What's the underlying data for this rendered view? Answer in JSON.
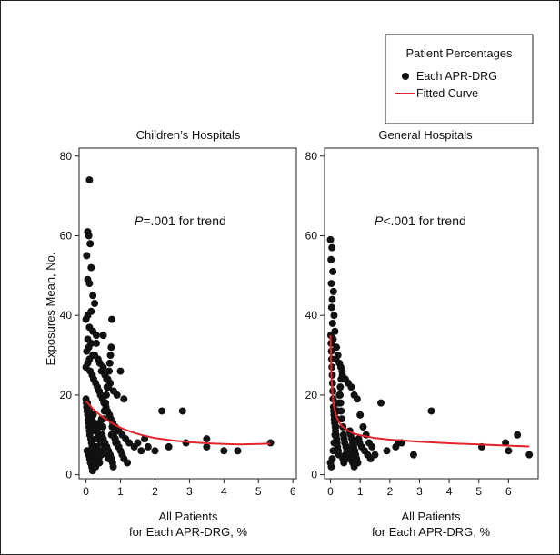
{
  "legend": {
    "title": "Patient Percentages",
    "items": [
      {
        "label": "Each APR-DRG",
        "kind": "point",
        "color": "#111111"
      },
      {
        "label": "Fitted Curve",
        "kind": "line",
        "color": "#e3222a"
      }
    ]
  },
  "ylabel": "Exposures Mean, No.",
  "chart_data": [
    {
      "type": "scatter",
      "title": "Children’s Hospitals",
      "annotation": {
        "p": "P",
        "rest": "=.001 for trend"
      },
      "xlabel": [
        "All Patients",
        "for Each APR-DRG, %"
      ],
      "xlim": [
        -0.2,
        6.1
      ],
      "ylim": [
        -1,
        82
      ],
      "xticks": [
        0,
        1,
        2,
        3,
        4,
        5,
        6
      ],
      "yticks": [
        0,
        20,
        40,
        60,
        80
      ],
      "series": [
        {
          "kind": "points",
          "color": "#111111",
          "x": [
            0.1,
            0.05,
            0.08,
            0.12,
            0.02,
            0.15,
            0.05,
            0.1,
            0.2,
            0.25,
            0.15,
            0.05,
            0.0,
            0.1,
            0.2,
            0.3,
            0.05,
            0.15,
            0.08,
            0.02,
            0.25,
            0.35,
            0.4,
            0.5,
            0.45,
            0.55,
            0.6,
            0.7,
            0.65,
            0.8,
            0.9,
            1.0,
            1.1,
            0.75,
            0.5,
            0.3,
            0.2,
            0.1,
            0.05,
            0.0,
            0.12,
            0.18,
            0.22,
            0.28,
            0.33,
            0.38,
            0.42,
            0.48,
            0.52,
            0.58,
            0.62,
            0.68,
            0.72,
            0.78,
            0.85,
            0.95,
            1.05,
            1.15,
            1.25,
            1.4,
            1.5,
            1.6,
            1.7,
            1.8,
            2.0,
            2.2,
            2.4,
            2.8,
            2.9,
            3.5,
            3.5,
            4.0,
            4.4,
            5.35,
            0.04,
            0.06,
            0.09,
            0.14,
            0.16,
            0.24,
            0.26,
            0.32,
            0.36,
            0.44,
            0.46,
            0.54,
            0.56,
            0.64,
            0.66,
            0.74,
            0.76,
            0.84,
            0.86,
            0.94,
            0.03,
            0.07,
            0.11,
            0.13,
            0.17,
            0.19,
            0.21,
            0.23,
            0.27,
            0.29,
            0.31,
            0.34,
            0.37,
            0.39,
            0.41,
            0.43,
            0.47,
            0.49,
            0.51,
            0.53,
            0.57,
            0.59,
            0.61,
            0.63,
            0.67,
            0.69,
            0.71,
            0.73,
            0.77,
            0.79,
            0.0,
            0.01,
            0.02,
            0.03,
            0.05,
            0.06,
            0.08,
            0.09,
            0.1,
            0.11,
            0.14,
            0.16,
            0.18,
            0.2,
            0.22,
            0.24,
            0.26,
            0.28,
            0.3,
            0.35,
            0.4,
            0.45,
            0.5,
            0.55,
            0.6,
            0.65,
            0.7,
            0.75,
            0.8,
            0.85,
            0.9,
            0.95,
            1.0,
            1.05,
            1.1,
            1.2,
            0.45,
            0.6
          ],
          "y": [
            74,
            61,
            60,
            58,
            55,
            52,
            49,
            48,
            45,
            43,
            41,
            40,
            39,
            37,
            36,
            35,
            34,
            33,
            32,
            31,
            30,
            29,
            28,
            27,
            26,
            25,
            24,
            23,
            22,
            21,
            20,
            26,
            19,
            39,
            35,
            33,
            30,
            29,
            28,
            27,
            26,
            25,
            24,
            23,
            22,
            21,
            20,
            19,
            18,
            17,
            16,
            15,
            14,
            13,
            12,
            11,
            10,
            9,
            8,
            7,
            8,
            6,
            9,
            7,
            6,
            16,
            7,
            16,
            8,
            7,
            9,
            6,
            6,
            8,
            18,
            17,
            16,
            15,
            14,
            13,
            12,
            11,
            10,
            9,
            8,
            7,
            6,
            5,
            4,
            10,
            12,
            9,
            8,
            7,
            6,
            5,
            4,
            3,
            2,
            1,
            15,
            13,
            11,
            9,
            7,
            5,
            4,
            3,
            6,
            8,
            10,
            12,
            14,
            16,
            18,
            20,
            22,
            24,
            26,
            28,
            30,
            32,
            3,
            2,
            19,
            18,
            17,
            16,
            15,
            14,
            13,
            12,
            11,
            10,
            9,
            8,
            7,
            6,
            5,
            4,
            3,
            2,
            11,
            12,
            13,
            14,
            9,
            8,
            7,
            6,
            5,
            4,
            10,
            9,
            8,
            7,
            6,
            5,
            4,
            3,
            5,
            7
          ]
        },
        {
          "kind": "line",
          "color": "#e3222a",
          "x": [
            0.0,
            0.2,
            0.4,
            0.6,
            0.8,
            1.0,
            1.3,
            1.6,
            2.0,
            2.5,
            3.0,
            3.5,
            4.0,
            4.5,
            5.0,
            5.35
          ],
          "y": [
            18.5,
            16.5,
            15.0,
            13.8,
            12.7,
            11.8,
            10.8,
            10.0,
            9.2,
            8.6,
            8.2,
            7.9,
            7.7,
            7.6,
            7.7,
            7.8
          ]
        }
      ]
    },
    {
      "type": "scatter",
      "title": "General Hospitals",
      "annotation": {
        "p": "P",
        "rest": "<.001 for trend"
      },
      "xlabel": [
        "All Patients",
        "for Each APR-DRG, %"
      ],
      "xlim": [
        -0.2,
        7.0
      ],
      "ylim": [
        -1,
        82
      ],
      "xticks": [
        0,
        1,
        2,
        3,
        4,
        5,
        6
      ],
      "yticks": [
        0,
        20,
        40,
        60,
        80
      ],
      "series": [
        {
          "kind": "points",
          "color": "#111111",
          "x": [
            0.0,
            0.05,
            0.02,
            0.08,
            0.03,
            0.1,
            0.06,
            0.04,
            0.12,
            0.07,
            0.15,
            0.09,
            0.2,
            0.25,
            0.18,
            0.3,
            0.35,
            0.4,
            0.5,
            0.6,
            0.7,
            0.8,
            0.9,
            1.0,
            1.1,
            1.2,
            1.3,
            1.4,
            1.7,
            1.9,
            2.2,
            2.3,
            2.4,
            2.8,
            3.4,
            5.1,
            5.9,
            6.0,
            6.3,
            6.7,
            0.01,
            0.02,
            0.03,
            0.04,
            0.05,
            0.06,
            0.07,
            0.08,
            0.09,
            0.1,
            0.11,
            0.12,
            0.13,
            0.14,
            0.16,
            0.17,
            0.19,
            0.21,
            0.22,
            0.24,
            0.26,
            0.28,
            0.32,
            0.34,
            0.36,
            0.38,
            0.42,
            0.44,
            0.46,
            0.48,
            0.52,
            0.55,
            0.58,
            0.62,
            0.65,
            0.68,
            0.72,
            0.75,
            0.78,
            0.82,
            0.85,
            0.88,
            0.92,
            0.95,
            0.98,
            1.05,
            1.15,
            1.25,
            1.35,
            1.5,
            0.0,
            0.03,
            0.06,
            0.09,
            0.12,
            0.15,
            0.18,
            0.21,
            0.24,
            0.27,
            0.3,
            0.33,
            0.36,
            0.39,
            0.42,
            0.45,
            0.5,
            0.55,
            0.6,
            0.65,
            0.7,
            0.75,
            0.8
          ],
          "y": [
            59,
            57,
            54,
            51,
            48,
            46,
            44,
            42,
            40,
            38,
            36,
            34,
            32,
            30,
            29,
            28,
            27,
            25,
            24,
            23,
            22,
            20,
            19,
            15,
            12,
            10,
            8,
            7,
            18,
            6,
            7,
            8,
            8,
            5,
            16,
            7,
            8,
            6,
            10,
            5,
            35,
            33,
            31,
            29,
            27,
            25,
            23,
            21,
            19,
            17,
            16,
            15,
            14,
            13,
            12,
            11,
            10,
            9,
            8,
            7,
            6,
            5,
            20,
            18,
            16,
            14,
            12,
            10,
            9,
            8,
            7,
            6,
            5,
            4,
            11,
            10,
            9,
            8,
            7,
            6,
            5,
            4,
            3,
            9,
            8,
            7,
            6,
            5,
            4,
            5,
            3,
            2,
            4,
            6,
            8,
            10,
            12,
            14,
            16,
            18,
            20,
            22,
            24,
            26,
            4,
            3,
            5,
            7,
            6,
            5,
            4,
            3,
            2
          ]
        },
        {
          "kind": "line",
          "color": "#e3222a",
          "x": [
            0.0,
            0.03,
            0.06,
            0.1,
            0.15,
            0.2,
            0.3,
            0.4,
            0.6,
            0.8,
            1.0,
            1.5,
            2.0,
            3.0,
            4.0,
            5.0,
            6.0,
            6.7
          ],
          "y": [
            35.0,
            25.0,
            21.0,
            18.0,
            16.0,
            14.6,
            13.0,
            12.1,
            11.0,
            10.3,
            9.9,
            9.2,
            8.8,
            8.3,
            7.9,
            7.6,
            7.3,
            7.1
          ]
        }
      ]
    }
  ]
}
